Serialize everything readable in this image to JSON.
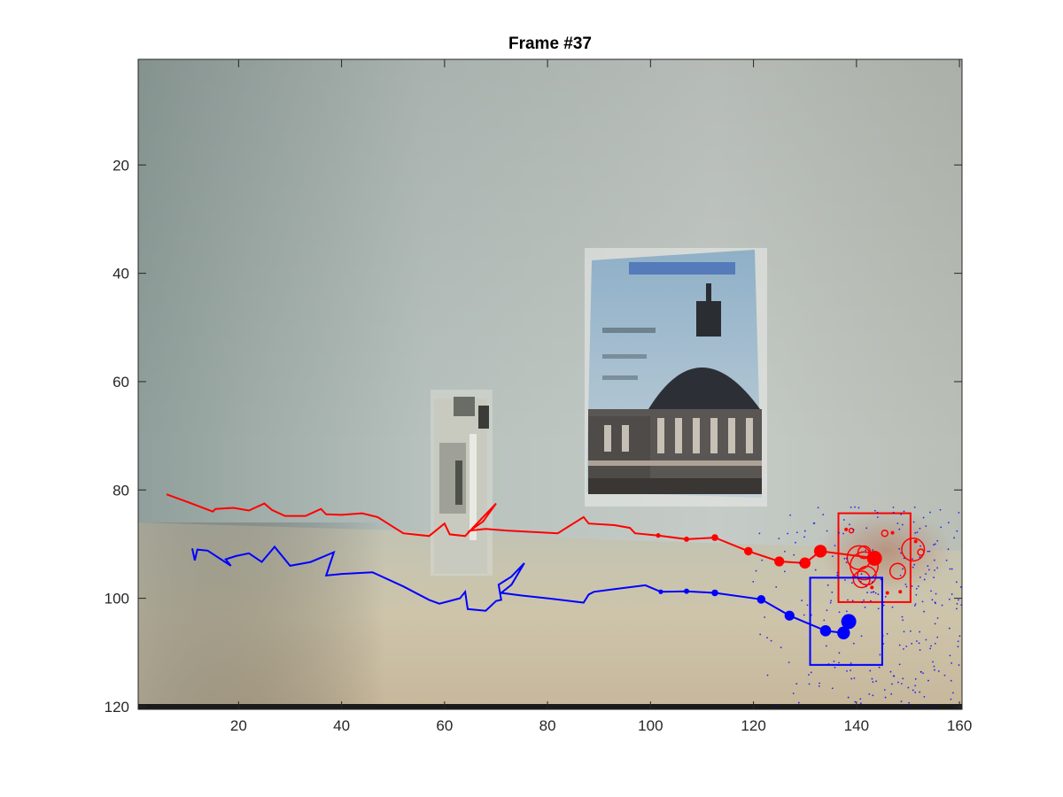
{
  "chart_data": {
    "type": "scatter",
    "title": "Frame #37",
    "xlabel": "",
    "ylabel": "",
    "xlim": [
      0.5,
      160.5
    ],
    "ylim": [
      0.5,
      120.5
    ],
    "y_reversed": true,
    "grid": false,
    "legend": "none",
    "x_ticks": [
      20,
      40,
      60,
      80,
      100,
      120,
      140,
      160
    ],
    "y_ticks": [
      20,
      40,
      60,
      80,
      100,
      120
    ],
    "background": "grayscale-like webcam frame of a wall with a poster of a domed building and a bottle",
    "colors": {
      "red_track": "#ff0000",
      "blue_track": "#0000ff"
    },
    "series": [
      {
        "color": "red",
        "track": [
          [
            6,
            80.8
          ],
          [
            10,
            82.2
          ],
          [
            15,
            84
          ],
          [
            15.5,
            83.5
          ],
          [
            19,
            83.3
          ],
          [
            22,
            83.8
          ],
          [
            25,
            82.5
          ],
          [
            26.5,
            83.7
          ],
          [
            29,
            84.8
          ],
          [
            33,
            84.8
          ],
          [
            36,
            83.5
          ],
          [
            37,
            84.5
          ],
          [
            40,
            84.6
          ],
          [
            44,
            84.3
          ],
          [
            47,
            85
          ],
          [
            52,
            88
          ],
          [
            57,
            88.5
          ],
          [
            60,
            86.2
          ],
          [
            61,
            88.2
          ],
          [
            64,
            88.5
          ],
          [
            66.5,
            86
          ],
          [
            70,
            82.5
          ],
          [
            67.5,
            85.8
          ],
          [
            65,
            87.5
          ],
          [
            68,
            87.2
          ],
          [
            72,
            87.5
          ],
          [
            78,
            87.8
          ],
          [
            82,
            88
          ],
          [
            87,
            85
          ],
          [
            88,
            86.2
          ],
          [
            93,
            86.5
          ],
          [
            96,
            87
          ],
          [
            97,
            88
          ],
          [
            101.5,
            88.4
          ],
          [
            107,
            89.1
          ],
          [
            112.5,
            88.8
          ],
          [
            119,
            91.3
          ],
          [
            125,
            93.2
          ],
          [
            130,
            93.5
          ],
          [
            133,
            91.3
          ],
          [
            143.5,
            92.6
          ]
        ],
        "dots": [
          [
            101.5,
            88.4,
            2.6
          ],
          [
            107,
            89.1,
            3
          ],
          [
            112.5,
            88.8,
            3.8
          ],
          [
            119,
            91.3,
            4.8
          ],
          [
            125,
            93.2,
            5.6
          ],
          [
            130,
            93.5,
            6.3
          ],
          [
            133,
            91.3,
            7.2
          ],
          [
            143.5,
            92.6,
            8.5
          ]
        ],
        "box": [
          136.5,
          84.3,
          150.5,
          100.7
        ],
        "particles": [
          [
            140.5,
            92.5,
            2.3
          ],
          [
            141.5,
            94,
            2.7
          ],
          [
            141,
            96.5,
            1.6
          ],
          [
            148,
            95,
            1.5
          ],
          [
            151,
            91,
            2.2
          ],
          [
            145.5,
            88,
            0.6
          ],
          [
            139,
            87.5,
            0.3
          ],
          [
            141.5,
            91.5,
            1.2
          ],
          [
            152.5,
            91.5,
            0.6
          ],
          [
            142,
            95.8,
            1.8
          ]
        ],
        "specks": [
          [
            138,
            87.3
          ],
          [
            147,
            87.9
          ],
          [
            143,
            98
          ],
          [
            146,
            99
          ],
          [
            139.5,
            96
          ],
          [
            148.5,
            98.8
          ],
          [
            151.5,
            89.5
          ]
        ]
      },
      {
        "color": "blue",
        "track": [
          [
            11,
            90.8
          ],
          [
            11.5,
            93
          ],
          [
            12,
            91
          ],
          [
            14,
            91.2
          ],
          [
            18.5,
            94
          ],
          [
            17.5,
            92.8
          ],
          [
            19.5,
            92.2
          ],
          [
            22,
            91.7
          ],
          [
            24.5,
            93.3
          ],
          [
            27,
            90.5
          ],
          [
            30,
            94
          ],
          [
            34,
            93.3
          ],
          [
            38.5,
            91.5
          ],
          [
            37,
            95.8
          ],
          [
            40,
            95.5
          ],
          [
            46,
            95.2
          ],
          [
            52,
            97.8
          ],
          [
            57,
            100.3
          ],
          [
            59,
            101
          ],
          [
            63,
            100
          ],
          [
            64,
            98.8
          ],
          [
            64.5,
            102
          ],
          [
            68,
            102.3
          ],
          [
            70,
            100.5
          ],
          [
            71,
            100.3
          ],
          [
            70.5,
            97.5
          ],
          [
            73,
            96
          ],
          [
            75.5,
            93.5
          ],
          [
            73,
            97.5
          ],
          [
            71,
            99
          ],
          [
            75,
            99.5
          ],
          [
            80,
            100
          ],
          [
            87,
            100.8
          ],
          [
            88,
            99.3
          ],
          [
            89,
            98.8
          ],
          [
            93,
            98.3
          ],
          [
            99,
            97.6
          ],
          [
            102,
            98.8
          ],
          [
            107,
            98.7
          ],
          [
            112.5,
            99
          ],
          [
            121.5,
            100.2
          ],
          [
            127,
            103.2
          ],
          [
            134,
            106
          ],
          [
            137.5,
            106.4
          ],
          [
            138.5,
            104.3
          ]
        ],
        "dots": [
          [
            102,
            98.8,
            2.6
          ],
          [
            107,
            98.7,
            3
          ],
          [
            112.5,
            99,
            3.8
          ],
          [
            121.5,
            100.2,
            4.8
          ],
          [
            127,
            103.2,
            5.6
          ],
          [
            134,
            106,
            6.3
          ],
          [
            137.5,
            106.4,
            7.2
          ],
          [
            138.5,
            104.3,
            8.5
          ]
        ],
        "box": [
          131,
          96.2,
          145,
          112.3
        ]
      }
    ]
  }
}
